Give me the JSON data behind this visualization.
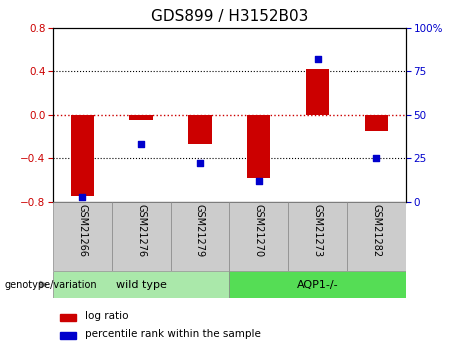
{
  "title": "GDS899 / H3152B03",
  "samples": [
    "GSM21266",
    "GSM21276",
    "GSM21279",
    "GSM21270",
    "GSM21273",
    "GSM21282"
  ],
  "log_ratios": [
    -0.75,
    -0.05,
    -0.27,
    -0.58,
    0.42,
    -0.15
  ],
  "percentile_ranks": [
    3,
    33,
    22,
    12,
    82,
    25
  ],
  "ylim_left": [
    -0.8,
    0.8
  ],
  "ylim_right": [
    0,
    100
  ],
  "bar_color": "#cc0000",
  "dot_color": "#0000cc",
  "zero_line_color": "#cc0000",
  "groups": [
    {
      "label": "wild type",
      "indices": [
        0,
        1,
        2
      ],
      "color": "#aae8aa"
    },
    {
      "label": "AQP1-/-",
      "indices": [
        3,
        4,
        5
      ],
      "color": "#55dd55"
    }
  ],
  "genotype_label": "genotype/variation",
  "legend_bar_label": "log ratio",
  "legend_dot_label": "percentile rank within the sample",
  "title_fontsize": 11,
  "tick_fontsize": 7.5,
  "sample_fontsize": 7,
  "group_fontsize": 8,
  "legend_fontsize": 7.5
}
